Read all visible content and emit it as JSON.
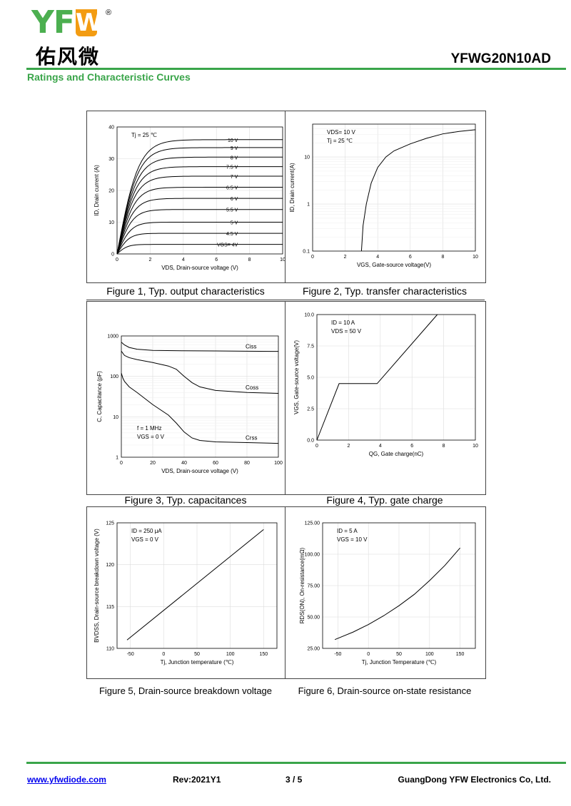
{
  "header": {
    "logo_text": "YF",
    "logo_u": "W",
    "logo_reg": "®",
    "logo_cn": "佑风微",
    "part_number": "YFWG20N10AD",
    "section_title": "Ratings and Characteristic Curves"
  },
  "captions": {
    "fig1": "Figure 1, Typ. output characteristics",
    "fig2": "Figure 2, Typ. transfer characteristics",
    "fig3": "Figure 3, Typ. capacitances",
    "fig4": "Figure 4, Typ. gate charge",
    "fig5": "Figure 5, Drain-source breakdown voltage",
    "fig6": "Figure 6, Drain-source on-state resistance"
  },
  "footer": {
    "website": "www.yfwdiode.com",
    "rev": "Rev:2021Y1",
    "page": "3 / 5",
    "company": "GuangDong YFW Electronics Co, Ltd."
  },
  "chart_data": [
    {
      "type": "line",
      "id": "fig1",
      "xlabel": "VDS, Drain-source voltage (V)",
      "ylabel": "ID, Drain current (A)",
      "xlim": [
        0,
        10
      ],
      "ylim": [
        0,
        40
      ],
      "xticks": [
        0,
        2,
        4,
        6,
        8,
        10
      ],
      "yticks": [
        0,
        10,
        20,
        30,
        40
      ],
      "annotations": [
        "Tj = 25 ℃"
      ],
      "series": [
        {
          "name": "10 V",
          "sat": 36
        },
        {
          "name": "9 V",
          "sat": 33.5
        },
        {
          "name": "8 V",
          "sat": 30.5
        },
        {
          "name": "7.5 V",
          "sat": 27.5
        },
        {
          "name": "7 V",
          "sat": 24.5
        },
        {
          "name": "6.5 V",
          "sat": 21
        },
        {
          "name": "6 V",
          "sat": 17.5
        },
        {
          "name": "5.5 V",
          "sat": 14
        },
        {
          "name": "5 V",
          "sat": 10
        },
        {
          "name": "4.5 V",
          "sat": 6.5
        },
        {
          "name": "VGS= 4V",
          "sat": 3
        }
      ]
    },
    {
      "type": "line",
      "id": "fig2",
      "xlabel": "VGS, Gate-source voltage(V)",
      "ylabel": "ID, Drain current(A)",
      "xlim": [
        0,
        10
      ],
      "ylim": [
        0.1,
        50
      ],
      "log_y": true,
      "xticks": [
        0,
        2,
        4,
        6,
        8,
        10
      ],
      "yticks": [
        0.1,
        1,
        10
      ],
      "annotations": [
        "VDS= 10 V",
        "Tj = 25 ℃"
      ],
      "series": [
        {
          "x": [
            3.0,
            3.1,
            3.3,
            3.6,
            4.0,
            4.5,
            5.0,
            6.0,
            7.0,
            8.0,
            9.0,
            10.0
          ],
          "y": [
            0.1,
            0.35,
            1.0,
            2.8,
            6.0,
            10.0,
            13.5,
            19.0,
            25.0,
            31.0,
            35.0,
            38.0
          ]
        }
      ]
    },
    {
      "type": "line",
      "id": "fig3",
      "xlabel": "VDS, Drain-source voltage (V)",
      "ylabel": "C, Capacitance (pF)",
      "xlim": [
        0,
        100
      ],
      "ylim": [
        1,
        1000
      ],
      "log_y": true,
      "xticks": [
        0,
        20,
        40,
        60,
        80,
        100
      ],
      "yticks": [
        1,
        10,
        100,
        1000
      ],
      "annotations": [
        "f = 1 MHz",
        "VGS = 0 V"
      ],
      "series": [
        {
          "name": "Ciss",
          "x": [
            0,
            2,
            5,
            10,
            20,
            40,
            60,
            80,
            100
          ],
          "y": [
            700,
            600,
            520,
            470,
            440,
            430,
            425,
            420,
            415
          ]
        },
        {
          "name": "Coss",
          "x": [
            0,
            2,
            5,
            10,
            20,
            30,
            35,
            40,
            45,
            50,
            60,
            80,
            100
          ],
          "y": [
            420,
            330,
            290,
            260,
            220,
            180,
            150,
            100,
            70,
            55,
            45,
            40,
            38
          ]
        },
        {
          "name": "Crss",
          "x": [
            0,
            1,
            2,
            5,
            10,
            20,
            30,
            35,
            40,
            45,
            50,
            60,
            80,
            100
          ],
          "y": [
            120,
            90,
            75,
            55,
            40,
            20,
            11,
            7,
            4.2,
            3.0,
            2.6,
            2.4,
            2.3,
            2.2
          ]
        }
      ]
    },
    {
      "type": "line",
      "id": "fig4",
      "xlabel": "QG, Gate charge(nC)",
      "ylabel": "VGS, Gate-source voltage(V)",
      "xlim": [
        0,
        10
      ],
      "ylim": [
        0,
        10
      ],
      "xticks": [
        0,
        2,
        4,
        6,
        8,
        10
      ],
      "yticks": [
        "0.0",
        "2.5",
        "5.0",
        "7.5",
        "10.0"
      ],
      "annotations": [
        "ID = 10 A",
        "VDS = 50 V"
      ],
      "series": [
        {
          "x": [
            0,
            1.4,
            3.8,
            7.6
          ],
          "y": [
            0,
            4.5,
            4.5,
            10
          ]
        }
      ]
    },
    {
      "type": "line",
      "id": "fig5",
      "xlabel": "Tj, Junction temperature (℃)",
      "ylabel": "BVDSS, Drain-source breakdown voltage (V)",
      "xlim": [
        -70,
        170
      ],
      "ylim": [
        110,
        125
      ],
      "xticks": [
        -50,
        0,
        50,
        100,
        150
      ],
      "yticks": [
        110,
        115,
        120,
        125
      ],
      "annotations": [
        "ID = 250 μA",
        "VGS = 0 V"
      ],
      "series": [
        {
          "x": [
            -55,
            150
          ],
          "y": [
            111,
            124.2
          ]
        }
      ]
    },
    {
      "type": "line",
      "id": "fig6",
      "xlabel": "Tj, Junction Temperature (℃)",
      "ylabel": "RDS(ON), On-resistance(mΩ)",
      "xlim": [
        -75,
        175
      ],
      "ylim": [
        25,
        125
      ],
      "xticks": [
        -50,
        0,
        50,
        100,
        150
      ],
      "yticks": [
        "25.00",
        "50.00",
        "75.00",
        "100.00",
        "125.00"
      ],
      "annotations": [
        "ID = 5 A",
        "VGS = 10 V"
      ],
      "series": [
        {
          "x": [
            -55,
            -25,
            0,
            25,
            50,
            75,
            100,
            125,
            150
          ],
          "y": [
            32,
            38,
            44,
            51,
            59,
            68,
            79,
            91,
            105
          ]
        }
      ]
    }
  ]
}
